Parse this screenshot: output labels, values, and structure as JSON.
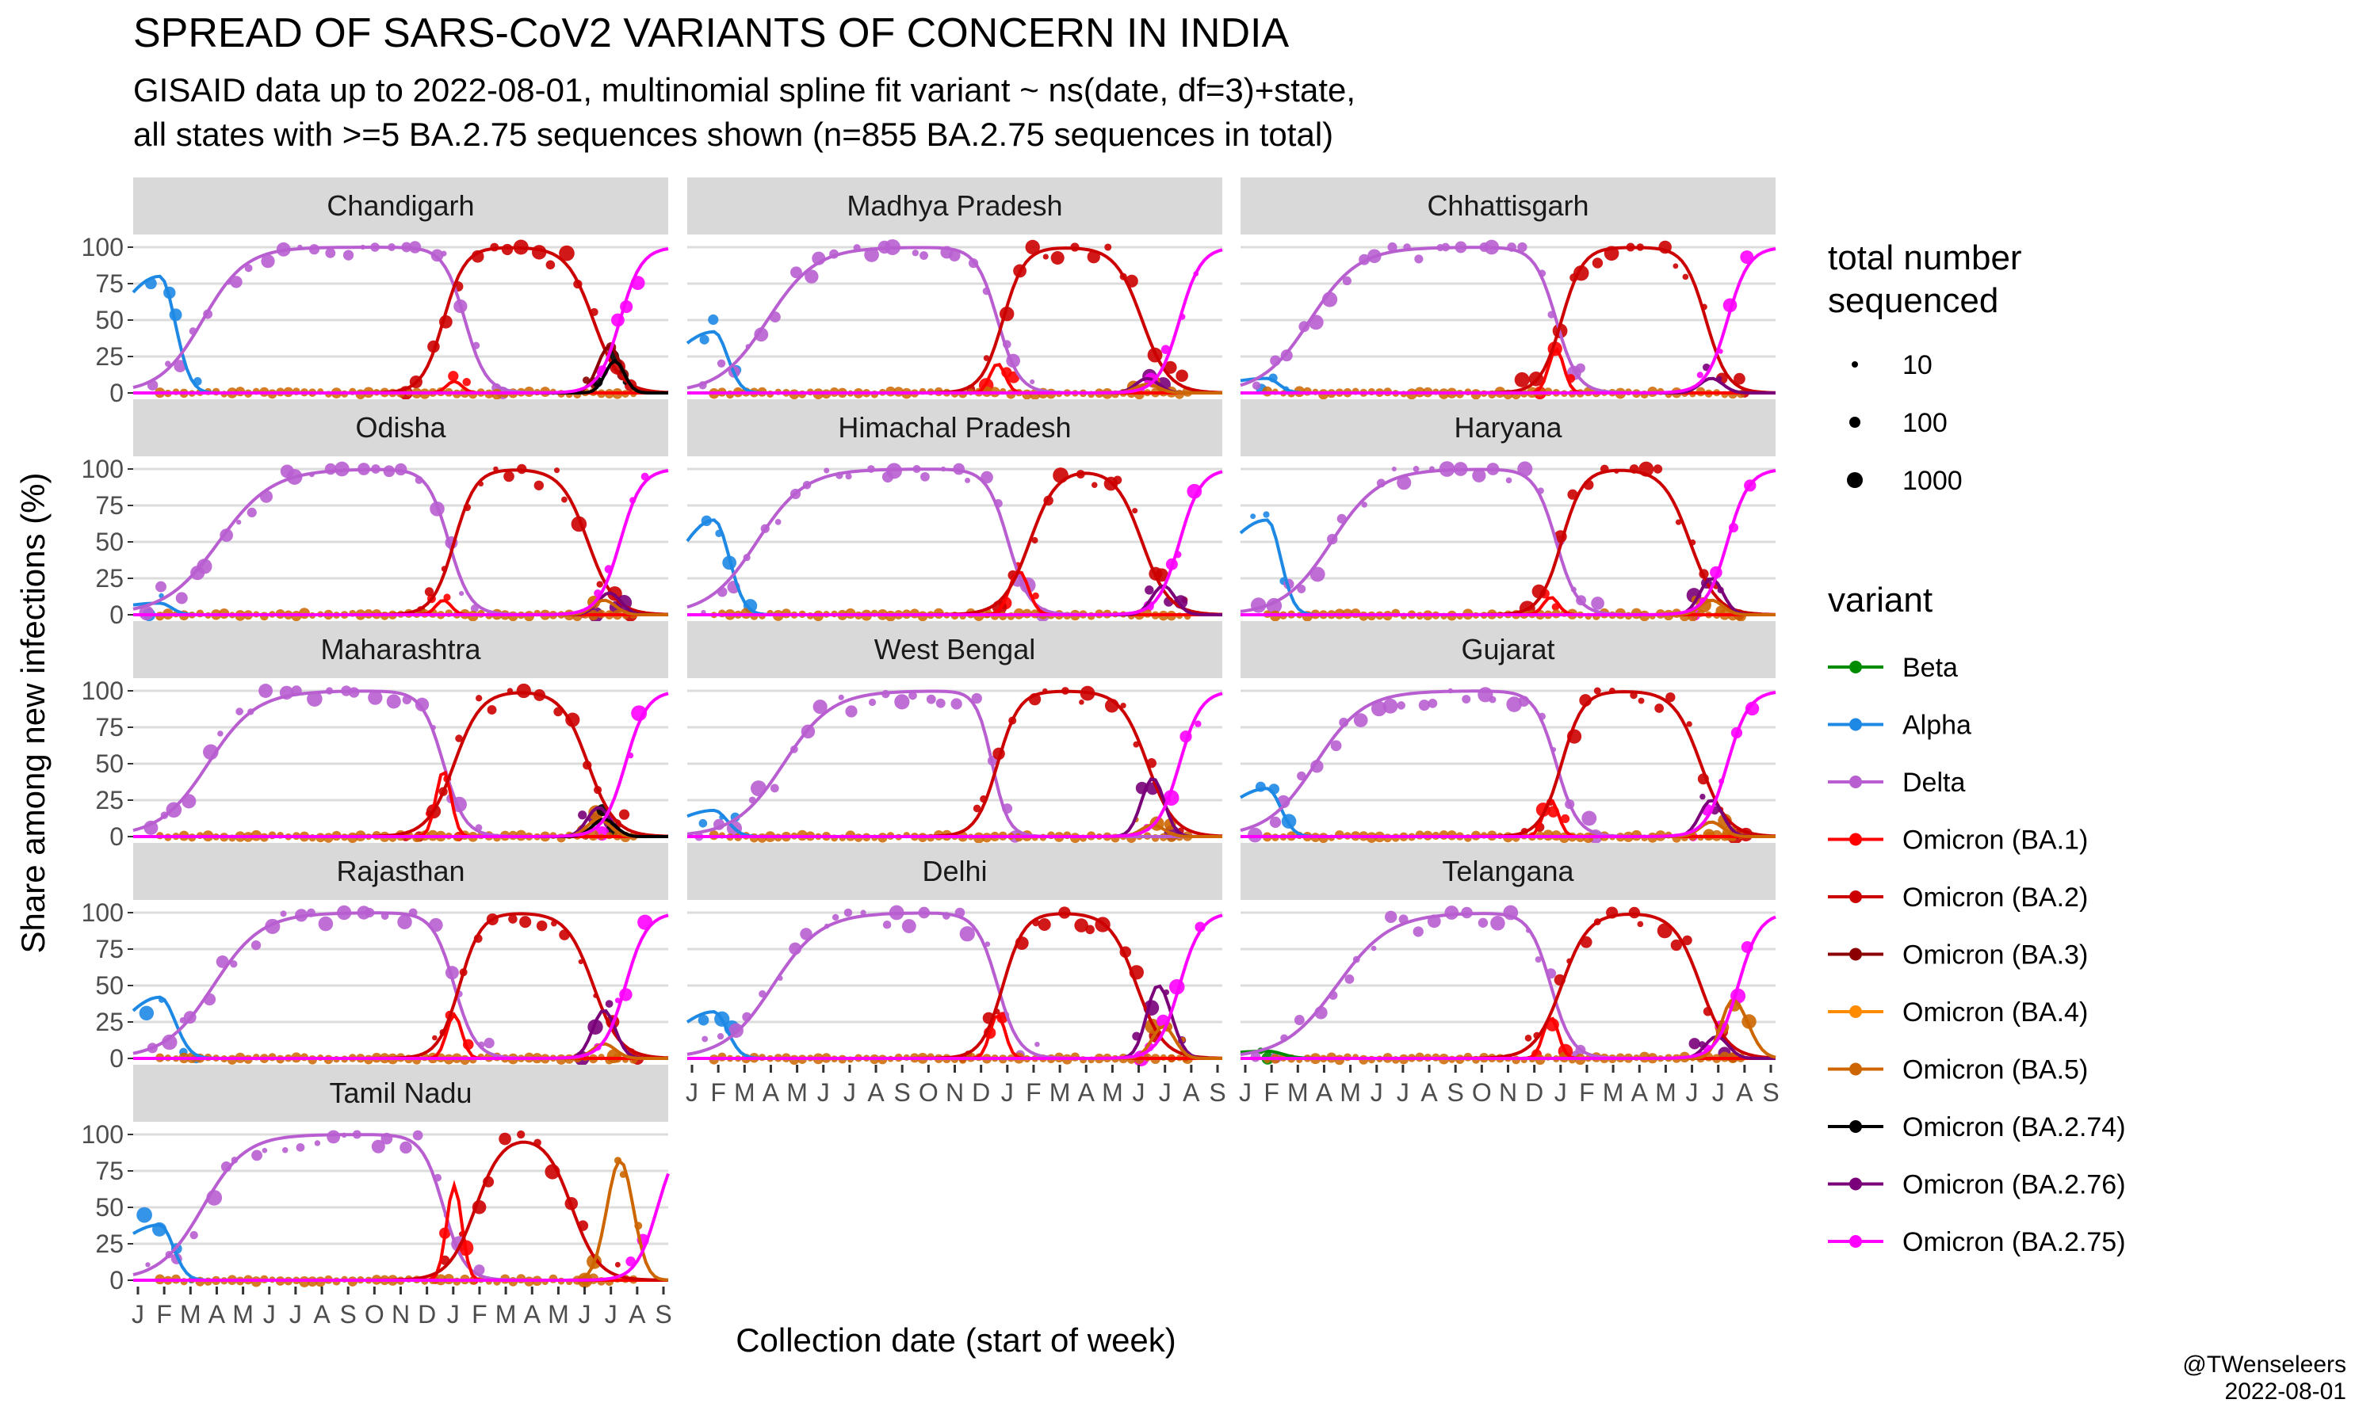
{
  "title": "SPREAD OF SARS-CoV2 VARIANTS OF CONCERN IN INDIA",
  "subtitle_line1": "GISAID data up to 2022-08-01, multinomial spline fit variant ~ ns(date, df=3)+state,",
  "subtitle_line2": "all states with >=5 BA.2.75 sequences shown (n=855 BA.2.75 sequences in total)",
  "credit_line1": "@TWenseleers",
  "credit_line2": "2022-08-01",
  "chart_data": {
    "type": "line",
    "xlabel": "Collection date (start of week)",
    "ylabel": "Share among new infections (%)",
    "y_ticks": [
      0,
      25,
      50,
      75,
      100
    ],
    "ylim": [
      0,
      100
    ],
    "x_tick_labels": [
      "J",
      "F",
      "M",
      "A",
      "M",
      "J",
      "J",
      "A",
      "S",
      "O",
      "N",
      "D",
      "J",
      "F",
      "M",
      "A",
      "M",
      "J",
      "J",
      "A",
      "S"
    ],
    "x_range_months": [
      "2021-01",
      "2022-09"
    ],
    "grid": true,
    "legend_placement": "right",
    "size_legend": {
      "title_line1": "total number",
      "title_line2": "sequenced",
      "labels": [
        "10",
        "100",
        "1000"
      ]
    },
    "variant_legend_title": "variant",
    "series": [
      {
        "name": "Beta",
        "color": "#008c00"
      },
      {
        "name": "Alpha",
        "color": "#1e88e5"
      },
      {
        "name": "Delta",
        "color": "#b85ed1"
      },
      {
        "name": "Omicron (BA.1)",
        "color": "#ff0000"
      },
      {
        "name": "Omicron (BA.2)",
        "color": "#cc0000"
      },
      {
        "name": "Omicron (BA.3)",
        "color": "#8b0000"
      },
      {
        "name": "Omicron (BA.4)",
        "color": "#ff8c00"
      },
      {
        "name": "Omicron (BA.5)",
        "color": "#cd6600"
      },
      {
        "name": "Omicron (BA.2.74)",
        "color": "#000000"
      },
      {
        "name": "Omicron (BA.2.76)",
        "color": "#7a007a"
      },
      {
        "name": "Omicron (BA.2.75)",
        "color": "#ff00ff"
      }
    ],
    "panels": [
      {
        "state": "Chandigarh",
        "fits": {
          "Alpha": [
            0.05,
            0.13,
            0.04,
            80
          ],
          "Delta": [
            0.13,
            0.04,
            0.62,
            0.02
          ],
          "Omicron (BA.1)": [
            0.6,
            0.02,
            0.02,
            8
          ],
          "Omicron (BA.2)": [
            0.58,
            0.02,
            0.86,
            0.025
          ],
          "Omicron (BA.3)": [
            0.89,
            0.03,
            0.03,
            32
          ],
          "Omicron (BA.2.74)": [
            0.9,
            0.025,
            0.025,
            22
          ],
          "Omicron (BA.2.75)": [
            0.91,
            0.02
          ]
        }
      },
      {
        "state": "Madhya Pradesh",
        "fits": {
          "Alpha": [
            0.05,
            0.11,
            0.035,
            42
          ],
          "Delta": [
            0.15,
            0.045,
            0.58,
            0.02
          ],
          "Omicron (BA.1)": [
            0.58,
            0.02,
            0.02,
            20
          ],
          "Omicron (BA.2)": [
            0.59,
            0.02,
            0.85,
            0.025
          ],
          "Omicron (BA.2.76)": [
            0.86,
            0.03,
            0.03,
            10
          ],
          "Omicron (BA.5)": [
            0.86,
            0.03,
            0.03,
            6
          ],
          "Omicron (BA.2.75)": [
            0.92,
            0.02
          ]
        }
      },
      {
        "state": "Chhattisgarh",
        "fits": {
          "Alpha": [
            0.05,
            0.12,
            0.03,
            10
          ],
          "Delta": [
            0.13,
            0.045,
            0.59,
            0.02
          ],
          "Omicron (BA.1)": [
            0.59,
            0.02,
            0.02,
            30
          ],
          "Omicron (BA.2)": [
            0.6,
            0.02,
            0.87,
            0.02
          ],
          "Omicron (BA.2.76)": [
            0.88,
            0.03,
            0.03,
            10
          ],
          "Omicron (BA.2.75)": [
            0.91,
            0.02
          ]
        }
      },
      {
        "state": "Odisha",
        "fits": {
          "Alpha": [
            0.05,
            0.12,
            0.03,
            8
          ],
          "Delta": [
            0.16,
            0.05,
            0.59,
            0.02
          ],
          "Omicron (BA.1)": [
            0.58,
            0.02,
            0.02,
            10
          ],
          "Omicron (BA.2)": [
            0.6,
            0.02,
            0.85,
            0.025
          ],
          "Omicron (BA.2.76)": [
            0.89,
            0.03,
            0.03,
            15
          ],
          "Omicron (BA.5)": [
            0.88,
            0.03,
            0.03,
            10
          ],
          "Omicron (BA.2.75)": [
            0.91,
            0.02
          ]
        }
      },
      {
        "state": "Himachal Pradesh",
        "fits": {
          "Alpha": [
            0.05,
            0.1,
            0.04,
            65
          ],
          "Delta": [
            0.13,
            0.045,
            0.6,
            0.02
          ],
          "Omicron (BA.1)": [
            0.62,
            0.025,
            0.025,
            30
          ],
          "Omicron (BA.2)": [
            0.64,
            0.025,
            0.85,
            0.025
          ],
          "Omicron (BA.2.76)": [
            0.89,
            0.03,
            0.03,
            20
          ],
          "Omicron (BA.2.75)": [
            0.92,
            0.02
          ]
        }
      },
      {
        "state": "Haryana",
        "fits": {
          "Alpha": [
            0.05,
            0.13,
            0.035,
            65
          ],
          "Delta": [
            0.17,
            0.045,
            0.59,
            0.02
          ],
          "Omicron (BA.1)": [
            0.58,
            0.02,
            0.02,
            12
          ],
          "Omicron (BA.2)": [
            0.6,
            0.02,
            0.84,
            0.025
          ],
          "Omicron (BA.2.76)": [
            0.88,
            0.03,
            0.03,
            25
          ],
          "Omicron (BA.5)": [
            0.88,
            0.03,
            0.03,
            10
          ],
          "Omicron (BA.2.75)": [
            0.91,
            0.02
          ]
        }
      },
      {
        "state": "Maharashtra",
        "fits": {
          "Delta": [
            0.14,
            0.045,
            0.58,
            0.02
          ],
          "Omicron (BA.1)": [
            0.58,
            0.02,
            0.02,
            45
          ],
          "Omicron (BA.2)": [
            0.6,
            0.025,
            0.85,
            0.025
          ],
          "Omicron (BA.2.76)": [
            0.87,
            0.03,
            0.03,
            20
          ],
          "Omicron (BA.5)": [
            0.87,
            0.03,
            0.03,
            12
          ],
          "Omicron (BA.2.74)": [
            0.88,
            0.03,
            0.03,
            12
          ],
          "Omicron (BA.2.75)": [
            0.92,
            0.02
          ]
        }
      },
      {
        "state": "West Bengal",
        "fits": {
          "Alpha": [
            0.05,
            0.1,
            0.035,
            18
          ],
          "Delta": [
            0.18,
            0.045,
            0.57,
            0.015
          ],
          "Omicron (BA.2)": [
            0.58,
            0.02,
            0.86,
            0.025
          ],
          "Omicron (BA.2.76)": [
            0.87,
            0.03,
            0.03,
            40
          ],
          "Omicron (BA.5)": [
            0.87,
            0.03,
            0.03,
            8
          ],
          "Omicron (BA.2.75)": [
            0.92,
            0.02
          ]
        }
      },
      {
        "state": "Gujarat",
        "fits": {
          "Alpha": [
            0.05,
            0.11,
            0.035,
            33
          ],
          "Delta": [
            0.14,
            0.045,
            0.59,
            0.02
          ],
          "Omicron (BA.1)": [
            0.58,
            0.02,
            0.02,
            25
          ],
          "Omicron (BA.2)": [
            0.6,
            0.02,
            0.86,
            0.025
          ],
          "Omicron (BA.2.76)": [
            0.88,
            0.03,
            0.03,
            25
          ],
          "Omicron (BA.5)": [
            0.88,
            0.03,
            0.03,
            10
          ],
          "Omicron (BA.2.75)": [
            0.91,
            0.02
          ]
        }
      },
      {
        "state": "Rajasthan",
        "fits": {
          "Alpha": [
            0.05,
            0.1,
            0.04,
            42
          ],
          "Delta": [
            0.15,
            0.045,
            0.6,
            0.02
          ],
          "Omicron (BA.1)": [
            0.6,
            0.02,
            0.02,
            30
          ],
          "Omicron (BA.2)": [
            0.61,
            0.02,
            0.86,
            0.025
          ],
          "Omicron (BA.2.76)": [
            0.88,
            0.03,
            0.03,
            33
          ],
          "Omicron (BA.5)": [
            0.88,
            0.03,
            0.03,
            10
          ],
          "Omicron (BA.2.75)": [
            0.92,
            0.02
          ]
        }
      },
      {
        "state": "Delhi",
        "fits": {
          "Alpha": [
            0.05,
            0.1,
            0.035,
            32
          ],
          "Delta": [
            0.16,
            0.045,
            0.58,
            0.02
          ],
          "Omicron (BA.1)": [
            0.58,
            0.02,
            0.02,
            30
          ],
          "Omicron (BA.2)": [
            0.59,
            0.02,
            0.84,
            0.025
          ],
          "Omicron (BA.2.76)": [
            0.88,
            0.03,
            0.035,
            50
          ],
          "Omicron (BA.5)": [
            0.89,
            0.03,
            0.03,
            22
          ],
          "Omicron (BA.2.75)": [
            0.92,
            0.02
          ]
        }
      },
      {
        "state": "Telangana",
        "fits": {
          "Beta": [
            0.05,
            0.12,
            0.04,
            5
          ],
          "Delta": [
            0.18,
            0.05,
            0.58,
            0.02
          ],
          "Omicron (BA.1)": [
            0.58,
            0.02,
            0.02,
            28
          ],
          "Omicron (BA.2)": [
            0.6,
            0.025,
            0.86,
            0.025
          ],
          "Omicron (BA.2.76)": [
            0.89,
            0.03,
            0.03,
            15
          ],
          "Omicron (BA.5)": [
            0.92,
            0.03,
            0.04,
            40
          ],
          "Omicron (BA.2.75)": [
            0.93,
            0.02
          ]
        }
      },
      {
        "state": "Tamil Nadu",
        "fits": {
          "Alpha": [
            0.05,
            0.12,
            0.035,
            38
          ],
          "Delta": [
            0.13,
            0.04,
            0.58,
            0.02
          ],
          "Omicron (BA.1)": [
            0.6,
            0.02,
            0.02,
            65
          ],
          "Omicron (BA.2)": [
            0.64,
            0.025,
            0.82,
            0.025
          ],
          "Omicron (BA.5)": [
            0.91,
            0.035,
            0.035,
            82
          ],
          "Omicron (BA.2.75)": [
            0.98,
            0.02
          ]
        }
      }
    ]
  }
}
